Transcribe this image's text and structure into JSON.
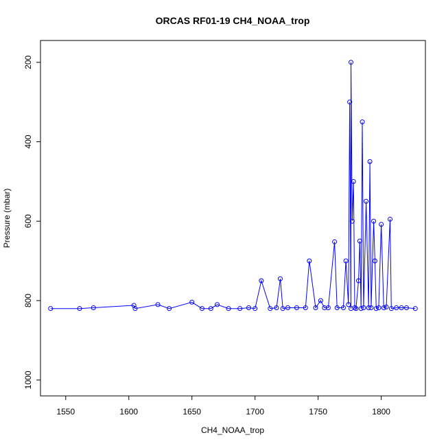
{
  "chart_data": {
    "type": "scatter",
    "title": "ORCAS RF01-19 CH4_NOAA_trop",
    "xlabel": "CH4_NOAA_trop",
    "ylabel": "Pressure (mbar)",
    "xlim": [
      1530,
      1835
    ],
    "ylim": [
      1040,
      145
    ],
    "y_inverted": true,
    "x_ticks": [
      1550,
      1600,
      1650,
      1700,
      1750,
      1800
    ],
    "y_ticks": [
      200,
      400,
      600,
      800,
      1000
    ],
    "grid": false,
    "legend": "none",
    "series_color": "#0000ff",
    "marker": "open-circle",
    "connect_points": true,
    "series": [
      {
        "values": [
          [
            1538,
            820
          ],
          [
            1561,
            820
          ],
          [
            1572,
            818
          ],
          [
            1604,
            812
          ],
          [
            1605,
            820
          ],
          [
            1623,
            810
          ],
          [
            1632,
            820
          ],
          [
            1650,
            804
          ],
          [
            1658,
            820
          ],
          [
            1665,
            820
          ],
          [
            1670,
            810
          ],
          [
            1679,
            820
          ],
          [
            1688,
            820
          ],
          [
            1695,
            818
          ],
          [
            1700,
            820
          ],
          [
            1705,
            750
          ],
          [
            1712,
            820
          ],
          [
            1717,
            818
          ],
          [
            1720,
            745
          ],
          [
            1722,
            820
          ],
          [
            1726,
            818
          ],
          [
            1733,
            818
          ],
          [
            1740,
            818
          ],
          [
            1743,
            700
          ],
          [
            1748,
            818
          ],
          [
            1752,
            800
          ],
          [
            1755,
            818
          ],
          [
            1758,
            818
          ],
          [
            1763,
            652
          ],
          [
            1765,
            818
          ],
          [
            1770,
            818
          ],
          [
            1772,
            700
          ],
          [
            1774,
            810
          ],
          [
            1775,
            300
          ],
          [
            1776,
            820
          ],
          [
            1776,
            200
          ],
          [
            1777,
            600
          ],
          [
            1778,
            500
          ],
          [
            1779,
            818
          ],
          [
            1780,
            820
          ],
          [
            1782,
            750
          ],
          [
            1783,
            650
          ],
          [
            1784,
            820
          ],
          [
            1785,
            350
          ],
          [
            1786,
            818
          ],
          [
            1788,
            550
          ],
          [
            1790,
            818
          ],
          [
            1791,
            450
          ],
          [
            1792,
            818
          ],
          [
            1794,
            600
          ],
          [
            1795,
            700
          ],
          [
            1796,
            820
          ],
          [
            1798,
            818
          ],
          [
            1800,
            608
          ],
          [
            1802,
            818
          ],
          [
            1804,
            816
          ],
          [
            1807,
            595
          ],
          [
            1808,
            820
          ],
          [
            1812,
            818
          ],
          [
            1816,
            818
          ],
          [
            1820,
            818
          ],
          [
            1827,
            820
          ]
        ]
      }
    ]
  }
}
